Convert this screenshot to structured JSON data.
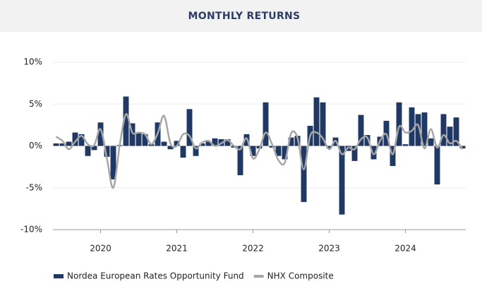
{
  "chart_data": {
    "type": "bar_line",
    "title": "MONTHLY RETURNS",
    "categories": [
      null,
      null,
      null,
      null,
      null,
      null,
      null,
      "2020",
      null,
      null,
      null,
      null,
      null,
      null,
      null,
      null,
      null,
      null,
      null,
      "2021",
      null,
      null,
      null,
      null,
      null,
      null,
      null,
      null,
      null,
      null,
      null,
      "2022",
      null,
      null,
      null,
      null,
      null,
      null,
      null,
      null,
      null,
      null,
      null,
      "2023",
      null,
      null,
      null,
      null,
      null,
      null,
      null,
      null,
      null,
      null,
      null,
      "2024",
      null,
      null,
      null,
      null,
      null,
      null,
      null,
      null,
      null
    ],
    "series": [
      {
        "name": "Nordea European Rates Opportunity Fund",
        "type": "bar",
        "color": "#1f3864",
        "values": [
          0.3,
          0.3,
          0.5,
          1.6,
          1.4,
          -1.2,
          -0.5,
          2.8,
          -1.3,
          -4.0,
          0.1,
          5.9,
          2.7,
          1.5,
          1.4,
          0.2,
          2.8,
          0.5,
          -0.4,
          0.6,
          -1.4,
          4.4,
          -1.2,
          0.3,
          0.5,
          0.9,
          0.8,
          0.8,
          -0.2,
          -3.5,
          1.4,
          -1.2,
          -0.3,
          5.2,
          -0.2,
          -1.2,
          -1.6,
          1.0,
          1.2,
          -6.7,
          2.4,
          5.8,
          5.2,
          -0.3,
          1.0,
          -8.2,
          -0.6,
          -1.8,
          3.7,
          1.3,
          -1.6,
          1.1,
          3.0,
          -2.4,
          5.2,
          0.2,
          4.6,
          3.8,
          4.0,
          0.9,
          -4.6,
          3.8,
          2.3,
          3.4,
          -0.3
        ]
      },
      {
        "name": "NHX Composite",
        "type": "line",
        "color": "#a6a6a6",
        "values": [
          1.1,
          0.6,
          -0.4,
          0.5,
          1.2,
          0.2,
          0.1,
          2.0,
          -1.5,
          -5.0,
          0.0,
          3.8,
          1.6,
          1.6,
          1.4,
          0.2,
          1.5,
          3.6,
          0.3,
          0.0,
          1.4,
          1.2,
          -0.3,
          0.4,
          0.6,
          0.0,
          0.3,
          0.7,
          0.0,
          -0.4,
          0.9,
          -1.5,
          -0.4,
          1.6,
          0.2,
          -1.7,
          -2.0,
          1.5,
          1.0,
          -2.8,
          1.2,
          1.6,
          0.9,
          -0.4,
          0.6,
          -1.0,
          -0.2,
          -0.4,
          0.8,
          1.0,
          -1.0,
          0.6,
          1.4,
          -1.0,
          2.3,
          1.6,
          1.8,
          2.5,
          -0.3,
          2.0,
          -0.2,
          1.3,
          0.3,
          0.6,
          -0.4
        ]
      }
    ],
    "ylim": [
      -10,
      10
    ],
    "yticks": [
      {
        "value": -10,
        "label": "-10%"
      },
      {
        "value": -5,
        "label": "-5%"
      },
      {
        "value": 0,
        "label": "0%"
      },
      {
        "value": 5,
        "label": "5%"
      },
      {
        "value": 10,
        "label": "10%"
      }
    ],
    "grid": true,
    "legend": "bottom"
  }
}
